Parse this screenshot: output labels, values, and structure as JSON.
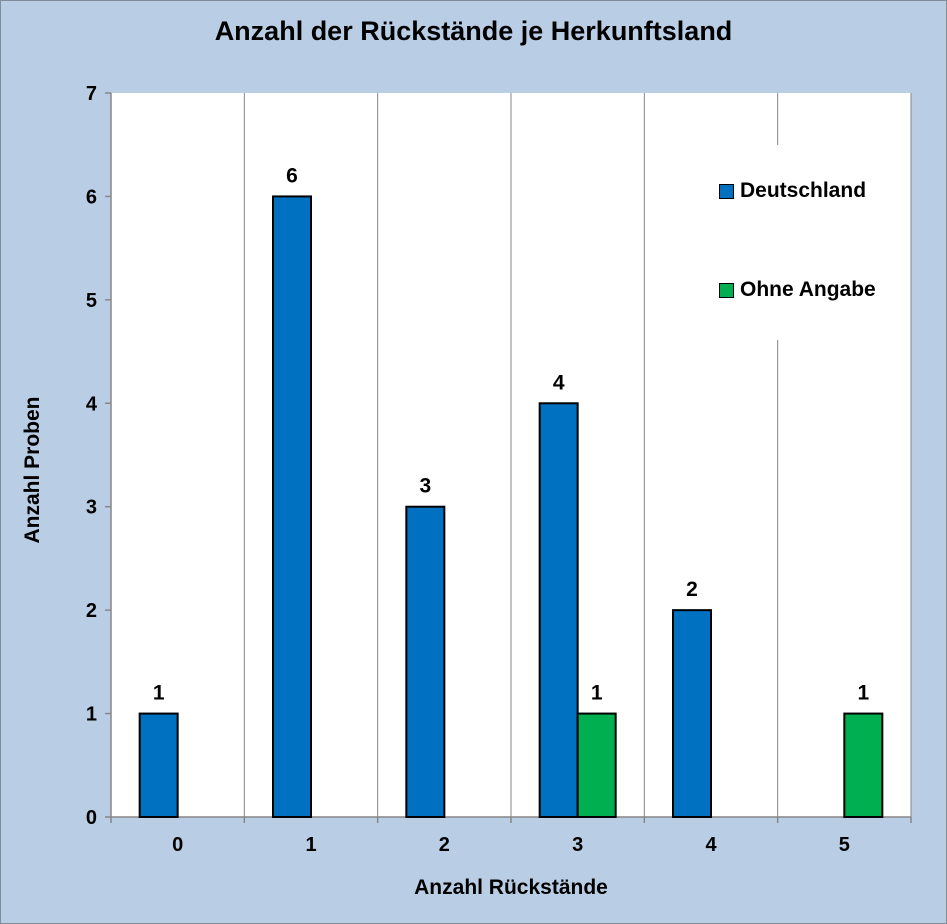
{
  "chart_data": {
    "type": "bar",
    "title": "Anzahl der Rückstände je Herkunftsland",
    "xlabel": "Anzahl Rückstände",
    "ylabel": "Anzahl Proben",
    "categories": [
      "0",
      "1",
      "2",
      "3",
      "4",
      "5"
    ],
    "series": [
      {
        "name": "Deutschland",
        "color": "#0070c0",
        "values": [
          1,
          6,
          3,
          4,
          2,
          null
        ]
      },
      {
        "name": "Ohne Angabe",
        "color": "#00b050",
        "values": [
          null,
          null,
          null,
          1,
          null,
          1
        ]
      }
    ],
    "ylim": [
      0,
      7
    ],
    "yticks": [
      "0",
      "1",
      "2",
      "3",
      "4",
      "5",
      "6",
      "7"
    ],
    "grid": "vertical",
    "legend_position": "right"
  }
}
